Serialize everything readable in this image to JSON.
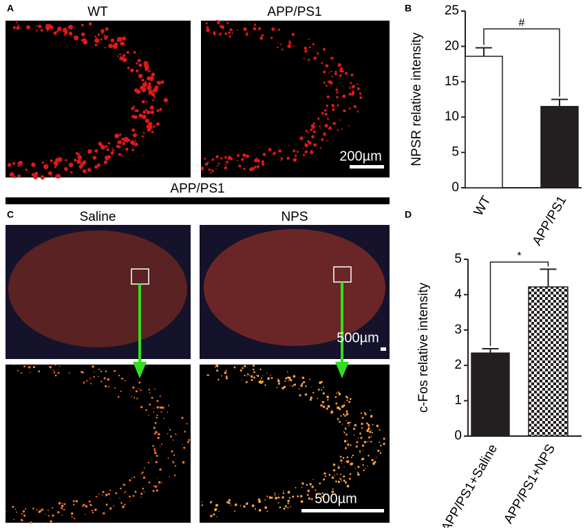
{
  "panel_labels": [
    "A",
    "B",
    "C",
    "D"
  ],
  "images": {
    "wt": "WT",
    "app_ps1": "APP/PS1",
    "scale_a": "200µm",
    "group": "APP/PS1",
    "saline": "Saline",
    "nps": "NPS",
    "scale_c_top": "500µm",
    "scale_c_bottom": "500µm"
  },
  "chart_data": [
    {
      "type": "bar",
      "ylabel": "NPSR relative intensity",
      "categories": [
        "WT",
        "APP/PS1"
      ],
      "values": [
        18.6,
        11.5
      ],
      "errors": [
        1.2,
        1.0
      ],
      "fills": [
        "#ffffff",
        "#231f20"
      ],
      "ylim": [
        0,
        25
      ],
      "yticks": [
        0,
        5,
        10,
        15,
        20,
        25
      ],
      "annotation": "#"
    },
    {
      "type": "bar",
      "ylabel": "c-Fos relative intensity",
      "categories": [
        "APP/PS1+Saline",
        "APP/PS1+NPS"
      ],
      "values": [
        2.35,
        4.22
      ],
      "errors": [
        0.12,
        0.5
      ],
      "fills": [
        "#231f20",
        "checker"
      ],
      "ylim": [
        0,
        5
      ],
      "yticks": [
        0,
        1,
        2,
        3,
        4,
        5
      ],
      "annotation": "*"
    }
  ]
}
